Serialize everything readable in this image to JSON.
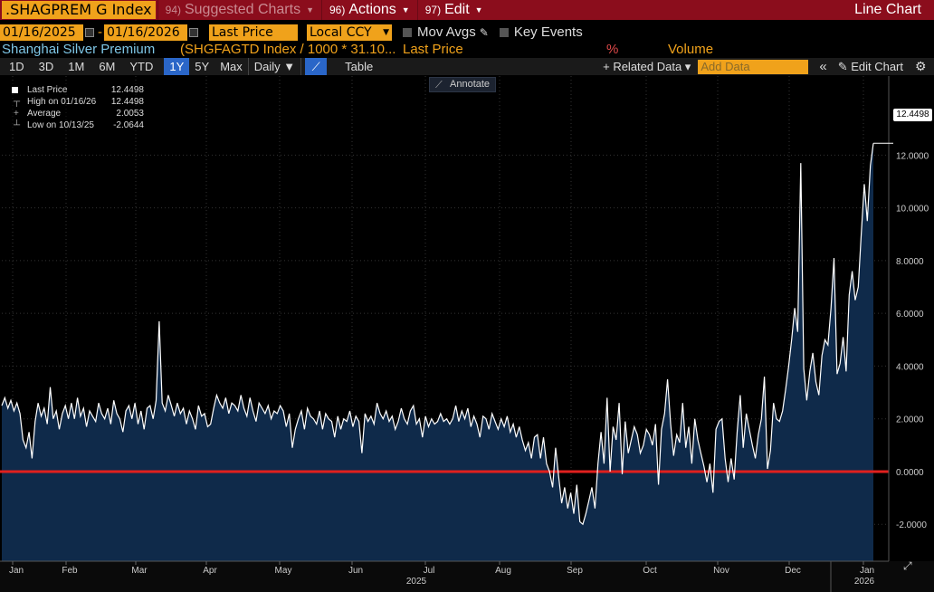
{
  "titlebar": {
    "ticker": ".SHAGPREM G Index",
    "menus": [
      {
        "num": "94)",
        "label": "Suggested Charts",
        "dim": true
      },
      {
        "num": "96)",
        "label": "Actions",
        "dim": false
      },
      {
        "num": "97)",
        "label": "Edit",
        "dim": false
      }
    ],
    "right_title": "Line Chart"
  },
  "controls": {
    "start_date": "01/16/2025",
    "end_date": "01/16/2026",
    "field": "Last Price",
    "currency": "Local CCY",
    "mov_avgs": "Mov Avgs",
    "key_events": "Key Events"
  },
  "legend_line": {
    "name": "Shanghai Silver Premium",
    "formula": "(SHGFAGTD Index / 1000 * 31.10...",
    "field": "Last Price",
    "pct": "%",
    "volume": "Volume"
  },
  "toolbar": {
    "periods": [
      "1D",
      "3D",
      "1M",
      "6M",
      "YTD",
      "1Y",
      "5Y",
      "Max"
    ],
    "active_period": "1Y",
    "frequency": "Daily ▼",
    "table": "Table",
    "related": "+ Related Data ▾",
    "add_data_placeholder": "Add Data",
    "collapse": "«",
    "edit_chart": "✎ Edit Chart",
    "annotate": "Annotate"
  },
  "stats": [
    {
      "label": "Last Price",
      "value": "12.4498"
    },
    {
      "label": "High on 01/16/26",
      "value": "12.4498"
    },
    {
      "label": "Average",
      "value": "2.0053"
    },
    {
      "label": "Low on 10/13/25",
      "value": "-2.0644"
    }
  ],
  "last_value_label": "12.4498",
  "colors": {
    "accent": "#f0a21b",
    "titlebar": "#8b0d1c",
    "zero_line": "#e0201e",
    "area": "#0f2a4a",
    "line": "#ffffff"
  },
  "chart_data": {
    "type": "area",
    "title": "",
    "ylim": [
      -3.4,
      15.0
    ],
    "yticks": [
      -2.0,
      0.0,
      2.0,
      4.0,
      6.0,
      8.0,
      10.0,
      12.0
    ],
    "ytick_labels": [
      "-2.0000",
      "0.0000",
      "2.0000",
      "4.0000",
      "6.0000",
      "8.0000",
      "10.0000",
      "12.0000"
    ],
    "xmonths": [
      "Jan",
      "Feb",
      "Mar",
      "Apr",
      "May",
      "Jun",
      "Jul",
      "Aug",
      "Sep",
      "Oct",
      "Nov",
      "Dec",
      "Jan"
    ],
    "xyear_labels": [
      "2025",
      "2026"
    ],
    "reference_line": 0.0,
    "series": [
      {
        "values": [
          2.5,
          2.8,
          2.4,
          2.7,
          2.3,
          2.6,
          2.2,
          1.2,
          0.9,
          1.5,
          0.5,
          1.9,
          2.6,
          2.1,
          2.4,
          1.8,
          3.2,
          2.0,
          2.3,
          1.6,
          2.2,
          2.5,
          2.0,
          2.6,
          2.0,
          2.8,
          2.1,
          2.4,
          1.7,
          2.3,
          2.1,
          1.9,
          2.6,
          2.2,
          2.0,
          2.4,
          1.8,
          2.7,
          2.2,
          2.0,
          1.5,
          2.3,
          2.5,
          2.0,
          2.6,
          1.8,
          2.3,
          1.6,
          2.4,
          2.5,
          2.0,
          2.7,
          5.7,
          2.6,
          2.3,
          2.9,
          2.5,
          2.1,
          2.6,
          2.2,
          2.4,
          1.8,
          2.3,
          2.0,
          1.6,
          2.5,
          2.1,
          2.2,
          1.7,
          1.8,
          2.4,
          2.9,
          2.6,
          2.4,
          2.8,
          2.2,
          2.6,
          2.5,
          2.3,
          2.9,
          2.4,
          2.1,
          2.8,
          2.3,
          1.9,
          2.6,
          2.4,
          2.2,
          2.5,
          2.0,
          2.3,
          2.2,
          2.5,
          2.3,
          1.7,
          2.2,
          0.9,
          1.6,
          2.0,
          2.3,
          1.6,
          2.4,
          2.1,
          2.0,
          1.8,
          2.3,
          1.6,
          2.2,
          2.0,
          1.9,
          1.3,
          2.1,
          1.6,
          2.0,
          1.9,
          2.3,
          1.7,
          2.1,
          1.9,
          0.7,
          2.2,
          1.9,
          2.1,
          1.8,
          2.6,
          2.2,
          2.0,
          2.3,
          1.9,
          2.1,
          1.6,
          1.9,
          2.4,
          2.0,
          1.8,
          2.3,
          2.5,
          1.8,
          2.0,
          1.3,
          2.1,
          1.7,
          2.0,
          1.8,
          1.9,
          2.2,
          1.9,
          2.0,
          1.8,
          2.0,
          2.5,
          1.9,
          2.3,
          2.0,
          2.4,
          1.7,
          2.1,
          1.8,
          1.3,
          2.1,
          2.0,
          1.6,
          2.2,
          1.9,
          1.6,
          2.0,
          1.7,
          2.1,
          1.5,
          1.8,
          1.3,
          1.7,
          1.2,
          0.8,
          1.1,
          0.5,
          1.3,
          1.4,
          0.5,
          1.3,
          0.3,
          0.0,
          -0.6,
          0.9,
          -0.2,
          -1.2,
          -0.6,
          -1.4,
          -0.8,
          -1.6,
          -0.5,
          -1.9,
          -2.0,
          -1.6,
          -1.1,
          -0.6,
          -1.4,
          0.3,
          1.5,
          0.3,
          2.8,
          0.0,
          1.7,
          1.2,
          2.6,
          -0.1,
          1.9,
          0.7,
          1.2,
          1.7,
          1.4,
          0.7,
          1.0,
          1.6,
          1.4,
          1.0,
          1.8,
          -0.5,
          1.6,
          2.2,
          3.5,
          1.8,
          0.6,
          1.4,
          1.1,
          2.6,
          0.9,
          1.7,
          0.3,
          2.0,
          1.2,
          0.7,
          0.2,
          -0.4,
          0.3,
          -0.8,
          1.6,
          1.9,
          2.0,
          0.5,
          -0.4,
          0.5,
          -0.3,
          1.5,
          2.9,
          0.9,
          2.2,
          1.6,
          1.0,
          0.5,
          1.4,
          2.0,
          3.6,
          0.1,
          0.8,
          2.6,
          2.0,
          1.9,
          2.3,
          3.1,
          4.0,
          5.0,
          6.2,
          5.3,
          11.7,
          3.9,
          2.7,
          3.8,
          4.5,
          3.4,
          2.9,
          4.4,
          5.0,
          4.8,
          6.2,
          8.1,
          3.7,
          4.1,
          5.1,
          3.8,
          6.7,
          7.6,
          6.5,
          7.0,
          9.0,
          10.9,
          9.5,
          11.6,
          12.4498
        ]
      }
    ]
  }
}
